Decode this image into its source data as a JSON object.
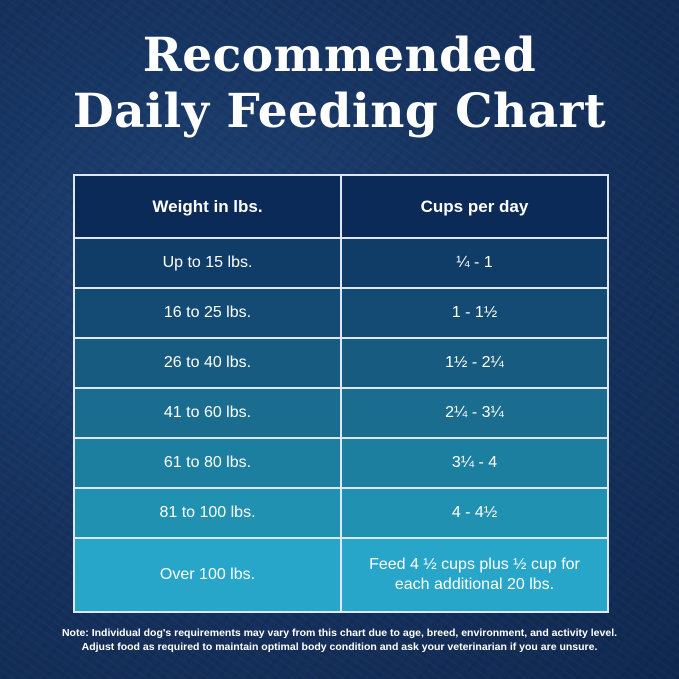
{
  "title": {
    "line1": "Recommended",
    "line2": "Daily Feeding Chart"
  },
  "table": {
    "headers": [
      "Weight in lbs.",
      "Cups per day"
    ],
    "rows": [
      {
        "weight": "Up to 15 lbs.",
        "cups": "¼ - 1",
        "color": "#0f3d68"
      },
      {
        "weight": "16 to 25 lbs.",
        "cups": "1 - 1½",
        "color": "#134b74"
      },
      {
        "weight": "26 to 40 lbs.",
        "cups": "1½ - 2¼",
        "color": "#175c80"
      },
      {
        "weight": "41 to 60 lbs.",
        "cups": "2¼ - 3¼",
        "color": "#1a6d8e"
      },
      {
        "weight": "61 to 80 lbs.",
        "cups": "3¼ - 4",
        "color": "#1d7f9f"
      },
      {
        "weight": "81 to 100 lbs.",
        "cups": "4 - 4½",
        "color": "#2191b1"
      },
      {
        "weight": "Over 100 lbs.",
        "cups_line1": "Feed 4 ½ cups plus ½ cup for",
        "cups_line2": "each additional 20 lbs.",
        "color": "#28a6c9"
      }
    ]
  },
  "note": {
    "line1": "Note: Individual dog's requirements may vary from this chart due to age, breed, environment, and activity level.",
    "line2": "Adjust food as required to maintain optimal body condition and ask your veterinarian if you are unsure."
  }
}
